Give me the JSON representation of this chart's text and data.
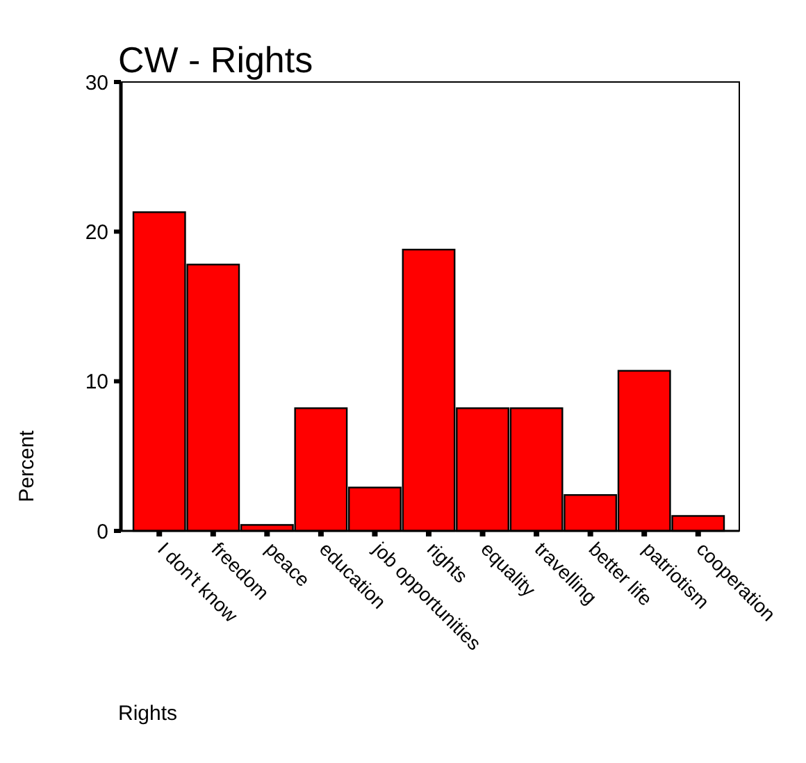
{
  "chart_data": {
    "type": "bar",
    "title": "CW - Rights",
    "xlabel": "Rights",
    "ylabel": "Percent",
    "categories": [
      "I don't know",
      "freedom",
      "peace",
      "education",
      "job opportunities",
      "rights",
      "equality",
      "travelling",
      "better life",
      "patriotism",
      "cooperation"
    ],
    "values": [
      21.3,
      17.8,
      0.4,
      8.2,
      2.9,
      18.8,
      8.2,
      8.2,
      2.4,
      10.7,
      1.0
    ],
    "color": "#ff0000",
    "ylim": [
      0,
      30
    ],
    "yticks": [
      0,
      10,
      20,
      30
    ]
  }
}
